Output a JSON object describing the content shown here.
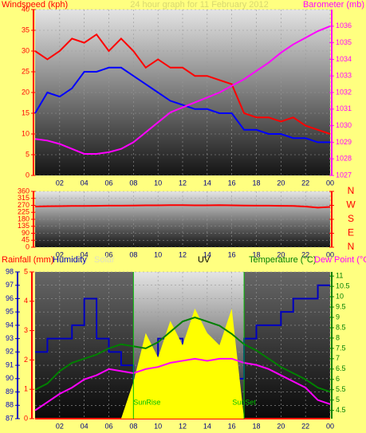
{
  "chart_data": [
    {
      "type": "line",
      "title": "24 hour graph for 11 February 2012",
      "ylabel": "Windspeed (kph)",
      "y2label": "Barometer (mb)",
      "ycolor": "#ff0000",
      "y2color": "#ff00ff",
      "grid": true,
      "xlim": [
        0,
        24
      ],
      "xticks": [
        {
          "value": 2,
          "label": "02"
        },
        {
          "value": 4,
          "label": "04"
        },
        {
          "value": 6,
          "label": "06"
        },
        {
          "value": 8,
          "label": "08"
        },
        10,
        12,
        14,
        16,
        18,
        20,
        22,
        {
          "value": 24,
          "label": "00"
        }
      ],
      "ylim": [
        0,
        40
      ],
      "yticks": [
        0,
        5,
        10,
        15,
        20,
        25,
        30,
        35,
        40
      ],
      "y2lim": [
        1027,
        1037
      ],
      "y2ticks": [
        1027,
        1028,
        1029,
        1030,
        1031,
        1032,
        1033,
        1034,
        1035,
        1036
      ],
      "x": [
        0,
        1,
        2,
        3,
        4,
        5,
        6,
        7,
        8,
        9,
        10,
        11,
        12,
        13,
        14,
        15,
        16,
        17,
        18,
        19,
        20,
        21,
        22,
        23,
        24
      ],
      "series": [
        {
          "color": "#ff0000",
          "values": [
            30,
            28,
            30,
            33,
            32,
            34,
            30,
            33,
            30,
            26,
            28,
            26,
            26,
            24,
            24,
            23,
            22,
            15,
            14,
            14,
            13,
            14,
            12,
            11,
            10
          ]
        },
        {
          "color": "#0000ff",
          "values": [
            15,
            20,
            19,
            21,
            25,
            25,
            26,
            26,
            24,
            22,
            20,
            18,
            17,
            16,
            16,
            15,
            15,
            11,
            11,
            10,
            10,
            9,
            9,
            8,
            8
          ]
        },
        {
          "color": "#ff00ff",
          "axis": "y2",
          "values": [
            1029.2,
            1029.1,
            1028.9,
            1028.6,
            1028.3,
            1028.3,
            1028.4,
            1028.6,
            1029.0,
            1029.6,
            1030.2,
            1030.8,
            1031.1,
            1031.4,
            1031.7,
            1032.0,
            1032.4,
            1032.8,
            1033.3,
            1033.8,
            1034.4,
            1034.9,
            1035.3,
            1035.7,
            1036.0
          ]
        }
      ]
    },
    {
      "type": "line",
      "ycolor": "#ff0000",
      "y2color": "#ff0000",
      "grid": true,
      "xlim": [
        0,
        24
      ],
      "xticks": [
        {
          "value": 2,
          "label": "02"
        },
        {
          "value": 4,
          "label": "04"
        },
        {
          "value": 6,
          "label": "06"
        },
        {
          "value": 8,
          "label": "08"
        },
        10,
        12,
        14,
        16,
        18,
        20,
        22,
        {
          "value": 24,
          "label": "00"
        }
      ],
      "ylim": [
        0,
        360
      ],
      "yticks": [
        0,
        45,
        90,
        135,
        180,
        225,
        270,
        315,
        360
      ],
      "y2lim": [
        0,
        360
      ],
      "y2ticks": [
        {
          "value": 360,
          "label": "N"
        },
        {
          "value": 270,
          "label": "W"
        },
        {
          "value": 180,
          "label": "S"
        },
        {
          "value": 90,
          "label": "E"
        },
        {
          "value": 0,
          "label": "N"
        }
      ],
      "x": [
        0,
        1,
        2,
        3,
        4,
        5,
        6,
        7,
        8,
        9,
        10,
        11,
        12,
        13,
        14,
        15,
        16,
        17,
        18,
        19,
        20,
        21,
        22,
        23,
        24
      ],
      "series": [
        {
          "color": "#ff0000",
          "values": [
            262,
            264,
            265,
            266,
            266,
            267,
            268,
            268,
            269,
            270,
            270,
            271,
            271,
            270,
            270,
            271,
            270,
            269,
            268,
            268,
            267,
            266,
            262,
            255,
            260
          ]
        }
      ]
    },
    {
      "type": "line",
      "uv_label": "UV",
      "ycolor": "#0000c0",
      "y2color": "#008000",
      "y3color": "#ff0000",
      "grid": true,
      "xlim": [
        0,
        24
      ],
      "xticks": [
        {
          "value": 2,
          "label": "02"
        },
        {
          "value": 4,
          "label": "04"
        },
        {
          "value": 6,
          "label": "06"
        },
        {
          "value": 8,
          "label": "08"
        },
        10,
        12,
        14,
        16,
        18,
        20,
        22,
        {
          "value": 24,
          "label": "00"
        }
      ],
      "ylim": [
        87,
        98
      ],
      "yticks": [
        87,
        88,
        89,
        90,
        91,
        92,
        93,
        94,
        95,
        96,
        97,
        98
      ],
      "y2lim": [
        4.1,
        11.2
      ],
      "y2ticks": [
        4.5,
        5,
        5.5,
        6,
        6.5,
        7,
        7.5,
        8,
        8.5,
        9,
        9.5,
        10,
        10.5,
        11
      ],
      "y3lim": [
        0,
        5
      ],
      "y3ticks": [
        0,
        1,
        2,
        3,
        4,
        5
      ],
      "y4lim": [
        0,
        600
      ],
      "annotations": [
        {
          "text": "SunRise",
          "x": 8
        },
        {
          "text": "SunSet",
          "x": 17
        }
      ],
      "x": [
        0,
        1,
        2,
        3,
        4,
        5,
        6,
        7,
        8,
        9,
        10,
        11,
        12,
        13,
        14,
        15,
        16,
        17,
        18,
        19,
        20,
        21,
        22,
        23,
        24
      ],
      "series": [
        {
          "name": "Rainfall (mm)",
          "color": "#ff0000",
          "axis": "y3",
          "values": [
            0,
            0,
            0,
            0,
            0,
            0,
            0,
            0,
            0,
            0,
            0,
            0,
            0,
            0,
            0,
            0,
            0,
            0,
            0,
            0,
            0,
            0,
            0,
            0,
            0
          ]
        },
        {
          "name": "Humidity",
          "color": "#0000c0",
          "style": "step",
          "values": [
            92,
            93,
            93,
            94,
            96,
            93,
            92,
            91,
            90,
            91,
            93,
            93,
            91,
            89,
            88,
            89,
            90,
            93,
            94,
            94,
            95,
            96,
            96,
            97,
            97
          ]
        },
        {
          "name": "Solar",
          "color": "#ffff00",
          "axis": "y4",
          "style": "area",
          "values": [
            0,
            0,
            0,
            0,
            0,
            0,
            0,
            0,
            150,
            350,
            250,
            400,
            300,
            450,
            350,
            300,
            450,
            0,
            0,
            0,
            0,
            0,
            0,
            0,
            0
          ]
        },
        {
          "name": "Temperature (°C)",
          "color": "#008000",
          "axis": "y2",
          "values": [
            5.5,
            5.8,
            6.4,
            6.8,
            7.0,
            7.2,
            7.5,
            7.7,
            7.6,
            7.5,
            7.8,
            8.3,
            8.8,
            9.0,
            8.8,
            8.6,
            8.2,
            7.7,
            7.4,
            7.0,
            6.6,
            6.3,
            6.0,
            5.6,
            5.4
          ]
        },
        {
          "name": "Dew Point (°C)",
          "color": "#ff00ff",
          "axis": "y2",
          "values": [
            4.5,
            4.9,
            5.3,
            5.6,
            6.0,
            6.2,
            6.5,
            6.4,
            6.3,
            6.5,
            6.6,
            6.8,
            6.9,
            7.0,
            6.9,
            7.0,
            7.0,
            6.8,
            6.7,
            6.5,
            6.2,
            5.9,
            5.6,
            5.0,
            4.8
          ]
        }
      ]
    }
  ]
}
